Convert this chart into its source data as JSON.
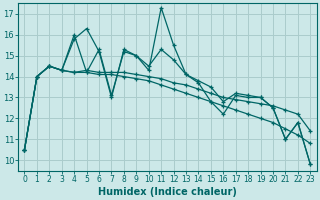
{
  "xlabel": "Humidex (Indice chaleur)",
  "xlim": [
    -0.5,
    23.5
  ],
  "ylim": [
    9.5,
    17.5
  ],
  "yticks": [
    10,
    11,
    12,
    13,
    14,
    15,
    16,
    17
  ],
  "xticks": [
    0,
    1,
    2,
    3,
    4,
    5,
    6,
    7,
    8,
    9,
    10,
    11,
    12,
    13,
    14,
    15,
    16,
    17,
    18,
    19,
    20,
    21,
    22,
    23
  ],
  "bg_color": "#cce8e8",
  "grid_color": "#aacccc",
  "line_color": "#006666",
  "lines": [
    [
      10.5,
      14.0,
      14.5,
      14.3,
      15.8,
      16.3,
      15.2,
      13.0,
      15.3,
      15.0,
      14.3,
      17.3,
      15.5,
      14.1,
      13.7,
      12.8,
      12.2,
      13.1,
      13.0,
      13.0,
      12.5,
      11.0,
      11.8,
      9.8
    ],
    [
      10.5,
      14.0,
      14.5,
      14.3,
      16.0,
      14.2,
      15.3,
      13.1,
      15.2,
      15.0,
      14.5,
      15.3,
      14.8,
      14.1,
      13.8,
      13.5,
      12.8,
      13.2,
      13.1,
      13.0,
      12.5,
      11.0,
      11.8,
      9.8
    ],
    [
      10.5,
      14.0,
      14.5,
      14.3,
      14.2,
      14.2,
      14.1,
      14.1,
      14.0,
      13.9,
      13.8,
      13.6,
      13.4,
      13.2,
      13.0,
      12.8,
      12.6,
      12.4,
      12.2,
      12.0,
      11.8,
      11.5,
      11.2,
      10.8
    ],
    [
      10.5,
      14.0,
      14.5,
      14.3,
      14.2,
      14.3,
      14.2,
      14.2,
      14.2,
      14.1,
      14.0,
      13.9,
      13.7,
      13.6,
      13.4,
      13.2,
      13.0,
      12.9,
      12.8,
      12.7,
      12.6,
      12.4,
      12.2,
      11.4
    ]
  ]
}
